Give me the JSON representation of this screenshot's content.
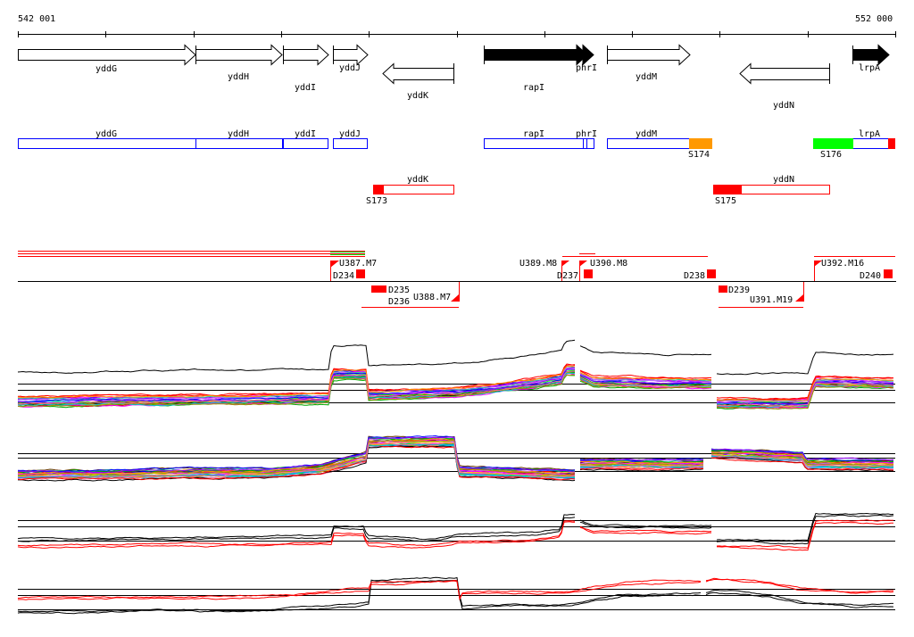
{
  "ruler": {
    "start_label": "542 001",
    "end_label": "552 000"
  },
  "genes": {
    "yddG": "yddG",
    "yddH": "yddH",
    "yddI": "yddI",
    "yddJ": "yddJ",
    "yddK": "yddK",
    "rapI": "rapI",
    "phrI": "phrI",
    "yddM": "yddM",
    "yddN": "yddN",
    "lrpA": "lrpA"
  },
  "annotations": {
    "S173": "S173",
    "S174": "S174",
    "S175": "S175",
    "S176": "S176"
  },
  "segments": {
    "U387": "U387.M7",
    "D234": "D234",
    "D235": "D235",
    "D236": "D236",
    "U388": "U388.M7",
    "U389": "U389.M8",
    "U390": "U390.M8",
    "D237": "D237",
    "D238": "D238",
    "D239": "D239",
    "U391": "U391.M19",
    "U392": "U392.M16",
    "D240": "D240"
  },
  "colors": {
    "cds_outline": "#0000ff",
    "segment": "#ff0000",
    "S174": "#ff9900",
    "S176": "#00ff00"
  }
}
